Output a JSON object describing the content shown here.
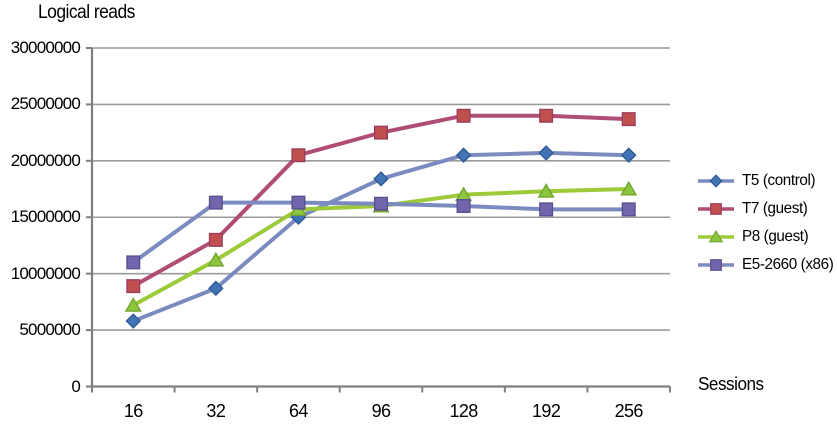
{
  "chart_data": {
    "type": "line",
    "title": "Logical reads",
    "xlabel": "Sessions",
    "ylabel": "Logical reads",
    "categories": [
      "16",
      "32",
      "64",
      "96",
      "128",
      "192",
      "256"
    ],
    "y_ticks": [
      0,
      5000000,
      10000000,
      15000000,
      20000000,
      25000000,
      30000000
    ],
    "ylim": [
      0,
      30000000
    ],
    "grid": true,
    "legend_position": "right",
    "colors": {
      "gridline": "#9b9b9b",
      "axis": "#7f7f7f",
      "text": "#000000"
    },
    "series": [
      {
        "name": "T5 (control)",
        "marker": "diamond",
        "line_color": "#7b8bc0",
        "marker_color": "#4273b4",
        "marker_edge": "#2f5b96",
        "values": [
          5800000,
          8700000,
          15000000,
          18400000,
          20500000,
          20700000,
          20500000
        ]
      },
      {
        "name": "T7 (guest)",
        "marker": "square",
        "line_color": "#b04d74",
        "marker_color": "#c0504d",
        "marker_edge": "#9c3d5e",
        "values": [
          8900000,
          13000000,
          20500000,
          22500000,
          24000000,
          24000000,
          23700000
        ]
      },
      {
        "name": "P8 (guest)",
        "marker": "triangle",
        "line_color": "#9cca39",
        "marker_color": "#8cc63f",
        "marker_edge": "#74a52d",
        "values": [
          7200000,
          11200000,
          15700000,
          16000000,
          17000000,
          17300000,
          17500000
        ]
      },
      {
        "name": "E5-2660 (x86)",
        "marker": "square",
        "line_color": "#7b8bc0",
        "marker_color": "#7365ac",
        "marker_edge": "#5a4f90",
        "values": [
          11000000,
          16300000,
          16300000,
          16200000,
          16000000,
          15700000,
          15700000
        ]
      }
    ]
  }
}
